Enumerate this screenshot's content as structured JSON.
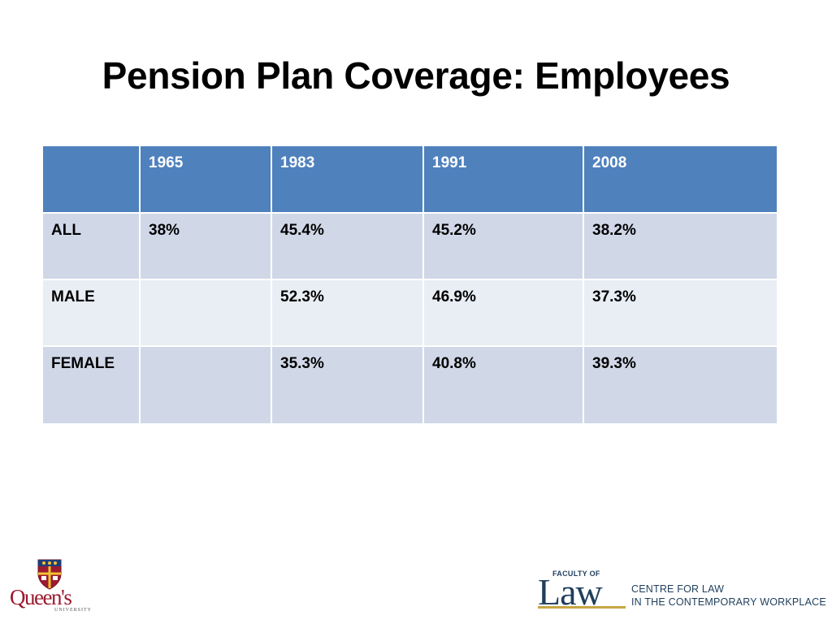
{
  "slide": {
    "title": "Pension Plan Coverage: Employees"
  },
  "table": {
    "headers": [
      "",
      "1965",
      "1983",
      "1991",
      "2008"
    ],
    "rows": [
      {
        "label": "ALL",
        "values": [
          "38%",
          "45.4%",
          "45.2%",
          "38.2%"
        ]
      },
      {
        "label": "MALE",
        "values": [
          "",
          "52.3%",
          "46.9%",
          "37.3%"
        ]
      },
      {
        "label": "FEMALE",
        "values": [
          "",
          "35.3%",
          "40.8%",
          "39.3%"
        ]
      }
    ]
  },
  "logos": {
    "queens": {
      "name": "Queen's",
      "subtitle": "UNIVERSITY"
    },
    "law": {
      "faculty": "FACULTY OF",
      "word": "Law",
      "centre_line_1": "CENTRE FOR LAW",
      "centre_line_2": "IN THE CONTEMPORARY WORKPLACE"
    }
  },
  "colors": {
    "header_bg": "#4f81bd",
    "row_dark": "#d0d8e8",
    "row_light": "#e9edf4",
    "queens_red": "#9b1b30",
    "law_navy": "#1f3e5c",
    "law_gold": "#c7a544"
  }
}
